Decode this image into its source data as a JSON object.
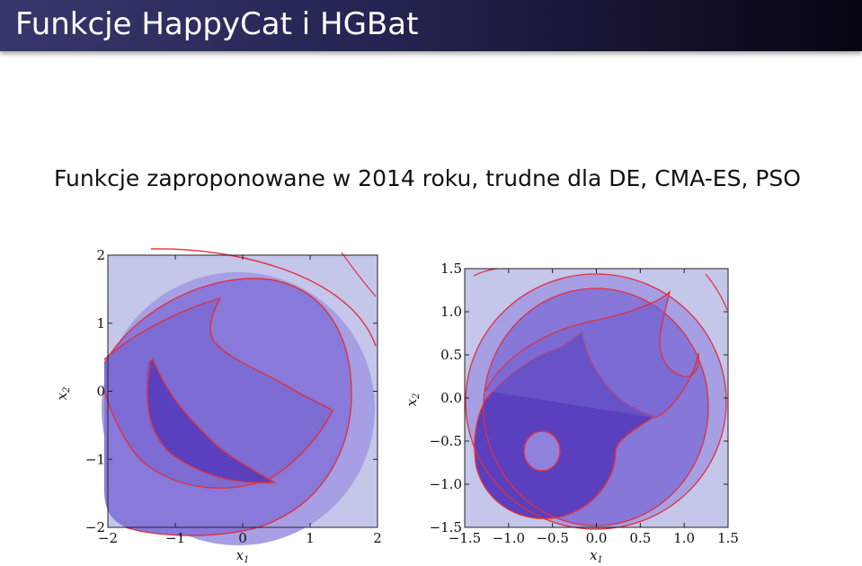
{
  "slide": {
    "title": "Funkcje HappyCat i HGBat",
    "body": "Funkcje zaproponowane w 2014 roku, trudne dla DE, CMA-ES, PSO"
  },
  "colors": {
    "title_bar": "#242452",
    "contour_line": "#e03040",
    "level_low": "#5a3fbf",
    "level_mid": "#7a68d4",
    "level_high": "#9c93e2",
    "level_top": "#c0c2ea"
  },
  "chart_data": [
    {
      "type": "contour",
      "xlim": [
        -2,
        2
      ],
      "ylim": [
        -2,
        2
      ],
      "x_ticks": [
        "−2",
        "−1",
        "0",
        "1",
        "2"
      ],
      "y_ticks": [
        "−2",
        "−1",
        "0",
        "1",
        "2"
      ],
      "xlabel": "x",
      "xlabel_sub": "1",
      "ylabel": "x",
      "ylabel_sub": "2"
    },
    {
      "type": "contour",
      "xlim": [
        -1.5,
        1.5
      ],
      "ylim": [
        -1.5,
        1.5
      ],
      "x_ticks": [
        "−1.5",
        "−1.0",
        "−0.5",
        "0.0",
        "0.5",
        "1.0",
        "1.5"
      ],
      "y_ticks": [
        "−1.5",
        "−1.0",
        "−0.5",
        "0.0",
        "0.5",
        "1.0",
        "1.5"
      ],
      "xlabel": "x",
      "xlabel_sub": "1",
      "ylabel": "x",
      "ylabel_sub": "2"
    }
  ]
}
